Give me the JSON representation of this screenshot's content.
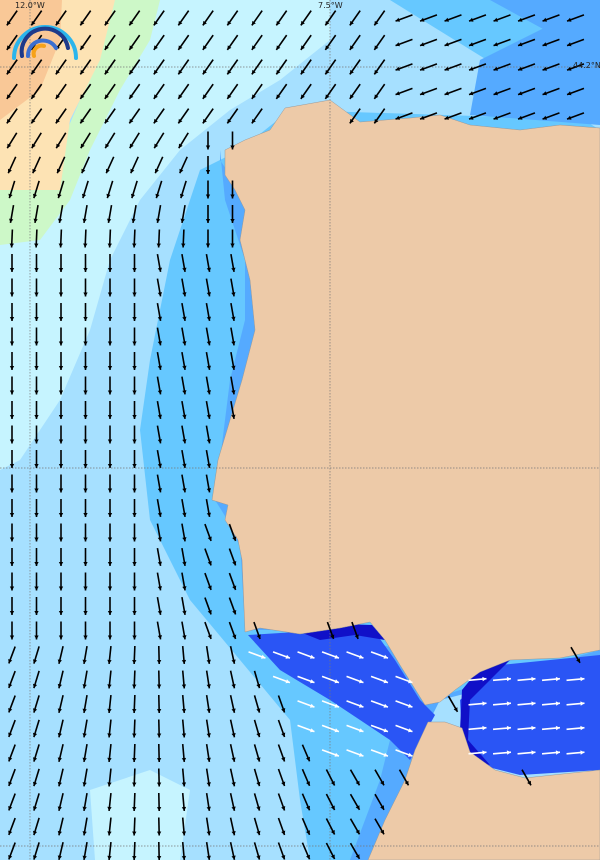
{
  "map": {
    "type": "wave-direction-map",
    "grid_labels": {
      "lon": [
        "12.0°W",
        "7.5°W"
      ],
      "lat": [
        "44.2°N"
      ]
    },
    "colors": {
      "land": "#edcaa8",
      "sea_orange": "#f9c897",
      "sea_beige": "#fde3b4",
      "sea_green": "#cdf8c8",
      "sea_pale": "#c6f4ff",
      "sea_light": "#a6e0ff",
      "sea_mid": "#66c8ff",
      "sea_blue": "#55aaff",
      "sea_deep": "#2a55f5",
      "sea_darkest": "#1010c8"
    },
    "icons": {
      "arrow": "direction-arrow-icon",
      "logo": "wave-logo-icon"
    }
  }
}
